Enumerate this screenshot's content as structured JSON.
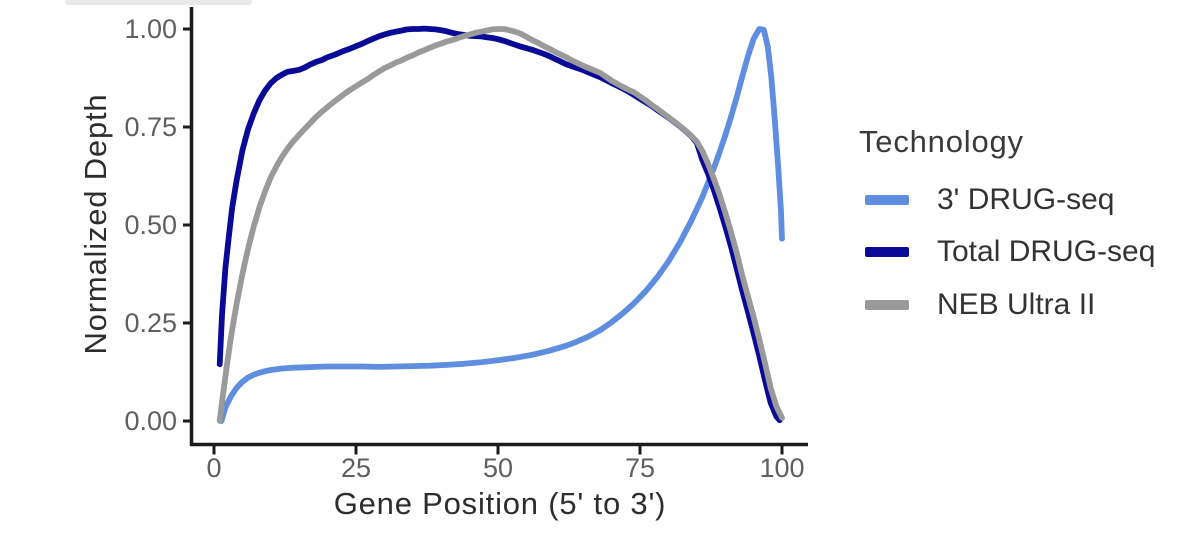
{
  "page": {
    "background": "#ffffff"
  },
  "artifacts": {
    "top_strip_color": "#e9e9e9"
  },
  "chart_data": {
    "type": "line",
    "title": "",
    "xlabel": "Gene Position (5' to 3')",
    "ylabel": "Normalized Depth",
    "xlim": [
      0,
      100
    ],
    "ylim": [
      0,
      1
    ],
    "grid": false,
    "xticks": [
      {
        "v": 0,
        "label": "0"
      },
      {
        "v": 25,
        "label": "25"
      },
      {
        "v": 50,
        "label": "50"
      },
      {
        "v": 75,
        "label": "75"
      },
      {
        "v": 100,
        "label": "100"
      }
    ],
    "yticks": [
      {
        "v": 0,
        "label": "0.00"
      },
      {
        "v": 0.25,
        "label": "0.25"
      },
      {
        "v": 0.5,
        "label": "0.50"
      },
      {
        "v": 0.75,
        "label": "0.75"
      },
      {
        "v": 1,
        "label": "1.00"
      }
    ],
    "legend": {
      "title": "Technology",
      "position": "right"
    },
    "style": {
      "axis": "#1b1b1b",
      "tick_label": "#5f5f5f",
      "axis_title": "#2d2d2d",
      "legend_text": "#333333",
      "line_width": 5.8
    },
    "series": [
      {
        "name": "3' DRUG-seq",
        "color": "#5F8EE0",
        "points": [
          [
            1.3,
            0.0
          ],
          [
            2,
            0.035
          ],
          [
            3,
            0.063
          ],
          [
            4,
            0.085
          ],
          [
            5,
            0.1
          ],
          [
            6,
            0.111
          ],
          [
            7,
            0.118
          ],
          [
            8,
            0.123
          ],
          [
            9,
            0.127
          ],
          [
            10,
            0.13
          ],
          [
            12,
            0.134
          ],
          [
            14,
            0.136
          ],
          [
            16,
            0.137
          ],
          [
            18,
            0.138
          ],
          [
            20,
            0.139
          ],
          [
            23,
            0.139
          ],
          [
            26,
            0.139
          ],
          [
            29,
            0.138
          ],
          [
            32,
            0.139
          ],
          [
            35,
            0.14
          ],
          [
            38,
            0.141
          ],
          [
            41,
            0.143
          ],
          [
            44,
            0.146
          ],
          [
            47,
            0.15
          ],
          [
            50,
            0.155
          ],
          [
            53,
            0.161
          ],
          [
            56,
            0.169
          ],
          [
            59,
            0.179
          ],
          [
            62,
            0.192
          ],
          [
            64,
            0.203
          ],
          [
            66,
            0.216
          ],
          [
            68,
            0.232
          ],
          [
            70,
            0.252
          ],
          [
            72,
            0.275
          ],
          [
            74,
            0.301
          ],
          [
            76,
            0.331
          ],
          [
            78,
            0.366
          ],
          [
            80,
            0.407
          ],
          [
            82,
            0.455
          ],
          [
            84,
            0.51
          ],
          [
            86,
            0.572
          ],
          [
            88,
            0.645
          ],
          [
            89,
            0.685
          ],
          [
            90,
            0.728
          ],
          [
            91,
            0.775
          ],
          [
            92,
            0.825
          ],
          [
            93,
            0.878
          ],
          [
            94,
            0.93
          ],
          [
            95,
            0.975
          ],
          [
            96,
            1.0
          ],
          [
            96.8,
            0.998
          ],
          [
            97.5,
            0.955
          ],
          [
            98.1,
            0.88
          ],
          [
            98.7,
            0.775
          ],
          [
            99.3,
            0.655
          ],
          [
            99.8,
            0.54
          ],
          [
            100,
            0.465
          ]
        ]
      },
      {
        "name": "Total DRUG-seq",
        "color": "#0A0A96",
        "points": [
          [
            1,
            0.145
          ],
          [
            1.4,
            0.27
          ],
          [
            2,
            0.39
          ],
          [
            2.6,
            0.47
          ],
          [
            3.2,
            0.545
          ],
          [
            4,
            0.615
          ],
          [
            5,
            0.69
          ],
          [
            6,
            0.745
          ],
          [
            7,
            0.785
          ],
          [
            8,
            0.818
          ],
          [
            9,
            0.843
          ],
          [
            10,
            0.862
          ],
          [
            11,
            0.875
          ],
          [
            12,
            0.884
          ],
          [
            13,
            0.891
          ],
          [
            14,
            0.893
          ],
          [
            15,
            0.896
          ],
          [
            16,
            0.902
          ],
          [
            17,
            0.91
          ],
          [
            18,
            0.916
          ],
          [
            19,
            0.921
          ],
          [
            20,
            0.928
          ],
          [
            21,
            0.933
          ],
          [
            22,
            0.939
          ],
          [
            23,
            0.945
          ],
          [
            24,
            0.95
          ],
          [
            25,
            0.956
          ],
          [
            26,
            0.962
          ],
          [
            27,
            0.969
          ],
          [
            28,
            0.975
          ],
          [
            29,
            0.981
          ],
          [
            30,
            0.986
          ],
          [
            31,
            0.99
          ],
          [
            32,
            0.993
          ],
          [
            33,
            0.996
          ],
          [
            34,
            0.999
          ],
          [
            35,
            1.0
          ],
          [
            36,
            1.0
          ],
          [
            37,
            1.001
          ],
          [
            38,
            1.0
          ],
          [
            39,
            0.999
          ],
          [
            40,
            0.997
          ],
          [
            41,
            0.994
          ],
          [
            42,
            0.99
          ],
          [
            43,
            0.987
          ],
          [
            44,
            0.985
          ],
          [
            45,
            0.983
          ],
          [
            46,
            0.982
          ],
          [
            47,
            0.981
          ],
          [
            48,
            0.979
          ],
          [
            49,
            0.977
          ],
          [
            50,
            0.974
          ],
          [
            51,
            0.97
          ],
          [
            52,
            0.965
          ],
          [
            53,
            0.96
          ],
          [
            54,
            0.955
          ],
          [
            55,
            0.951
          ],
          [
            56,
            0.947
          ],
          [
            57,
            0.942
          ],
          [
            58,
            0.937
          ],
          [
            59,
            0.931
          ],
          [
            60,
            0.924
          ],
          [
            61,
            0.917
          ],
          [
            62,
            0.91
          ],
          [
            63,
            0.905
          ],
          [
            64,
            0.9
          ],
          [
            65,
            0.895
          ],
          [
            66,
            0.889
          ],
          [
            67,
            0.883
          ],
          [
            68,
            0.877
          ],
          [
            69,
            0.87
          ],
          [
            70,
            0.862
          ],
          [
            71,
            0.855
          ],
          [
            72,
            0.848
          ],
          [
            73,
            0.84
          ],
          [
            74,
            0.831
          ],
          [
            75,
            0.822
          ],
          [
            76,
            0.813
          ],
          [
            77,
            0.804
          ],
          [
            78,
            0.794
          ],
          [
            79,
            0.784
          ],
          [
            80,
            0.774
          ],
          [
            81,
            0.763
          ],
          [
            82,
            0.752
          ],
          [
            83,
            0.74
          ],
          [
            84,
            0.727
          ],
          [
            85,
            0.71
          ],
          [
            86,
            0.665
          ],
          [
            87,
            0.63
          ],
          [
            88,
            0.59
          ],
          [
            89,
            0.545
          ],
          [
            90,
            0.497
          ],
          [
            91,
            0.446
          ],
          [
            92,
            0.39
          ],
          [
            93,
            0.333
          ],
          [
            94,
            0.279
          ],
          [
            95,
            0.224
          ],
          [
            96,
            0.166
          ],
          [
            97,
            0.104
          ],
          [
            98,
            0.047
          ],
          [
            99,
            0.012
          ],
          [
            99.6,
            0.002
          ]
        ]
      },
      {
        "name": "NEB Ultra II",
        "color": "#9A9A9A",
        "points": [
          [
            1,
            0.0
          ],
          [
            1.6,
            0.07
          ],
          [
            2.2,
            0.135
          ],
          [
            3,
            0.215
          ],
          [
            4,
            0.3
          ],
          [
            5,
            0.375
          ],
          [
            6,
            0.44
          ],
          [
            7,
            0.497
          ],
          [
            8,
            0.545
          ],
          [
            9,
            0.586
          ],
          [
            10,
            0.622
          ],
          [
            11,
            0.65
          ],
          [
            12,
            0.675
          ],
          [
            13,
            0.696
          ],
          [
            14,
            0.714
          ],
          [
            15,
            0.73
          ],
          [
            16,
            0.746
          ],
          [
            17,
            0.761
          ],
          [
            18,
            0.776
          ],
          [
            19,
            0.789
          ],
          [
            20,
            0.801
          ],
          [
            21,
            0.813
          ],
          [
            22,
            0.824
          ],
          [
            23,
            0.835
          ],
          [
            24,
            0.845
          ],
          [
            25,
            0.854
          ],
          [
            26,
            0.863
          ],
          [
            27,
            0.872
          ],
          [
            28,
            0.882
          ],
          [
            29,
            0.891
          ],
          [
            30,
            0.9
          ],
          [
            31,
            0.907
          ],
          [
            32,
            0.914
          ],
          [
            33,
            0.92
          ],
          [
            34,
            0.927
          ],
          [
            35,
            0.933
          ],
          [
            36,
            0.94
          ],
          [
            37,
            0.946
          ],
          [
            38,
            0.952
          ],
          [
            39,
            0.958
          ],
          [
            40,
            0.963
          ],
          [
            41,
            0.968
          ],
          [
            42,
            0.972
          ],
          [
            43,
            0.977
          ],
          [
            44,
            0.982
          ],
          [
            45,
            0.986
          ],
          [
            46,
            0.99
          ],
          [
            47,
            0.993
          ],
          [
            48,
            0.996
          ],
          [
            49,
            0.999
          ],
          [
            50,
            1.0
          ],
          [
            51,
            1.0
          ],
          [
            52,
            0.997
          ],
          [
            53,
            0.993
          ],
          [
            54,
            0.988
          ],
          [
            55,
            0.98
          ],
          [
            56,
            0.972
          ],
          [
            57,
            0.965
          ],
          [
            58,
            0.957
          ],
          [
            59,
            0.95
          ],
          [
            60,
            0.942
          ],
          [
            61,
            0.935
          ],
          [
            62,
            0.928
          ],
          [
            63,
            0.92
          ],
          [
            64,
            0.913
          ],
          [
            65,
            0.906
          ],
          [
            66,
            0.9
          ],
          [
            67,
            0.894
          ],
          [
            68,
            0.888
          ],
          [
            69,
            0.878
          ],
          [
            70,
            0.868
          ],
          [
            71,
            0.86
          ],
          [
            72,
            0.852
          ],
          [
            73,
            0.845
          ],
          [
            74,
            0.838
          ],
          [
            75,
            0.828
          ],
          [
            76,
            0.818
          ],
          [
            77,
            0.807
          ],
          [
            78,
            0.797
          ],
          [
            79,
            0.786
          ],
          [
            80,
            0.775
          ],
          [
            81,
            0.764
          ],
          [
            82,
            0.753
          ],
          [
            83,
            0.741
          ],
          [
            84,
            0.728
          ],
          [
            85,
            0.713
          ],
          [
            86,
            0.688
          ],
          [
            87,
            0.655
          ],
          [
            88,
            0.618
          ],
          [
            89,
            0.578
          ],
          [
            90,
            0.532
          ],
          [
            91,
            0.483
          ],
          [
            92,
            0.43
          ],
          [
            93,
            0.372
          ],
          [
            94,
            0.318
          ],
          [
            95,
            0.266
          ],
          [
            96,
            0.208
          ],
          [
            97,
            0.148
          ],
          [
            98,
            0.085
          ],
          [
            99,
            0.038
          ],
          [
            100,
            0.008
          ]
        ]
      }
    ]
  }
}
